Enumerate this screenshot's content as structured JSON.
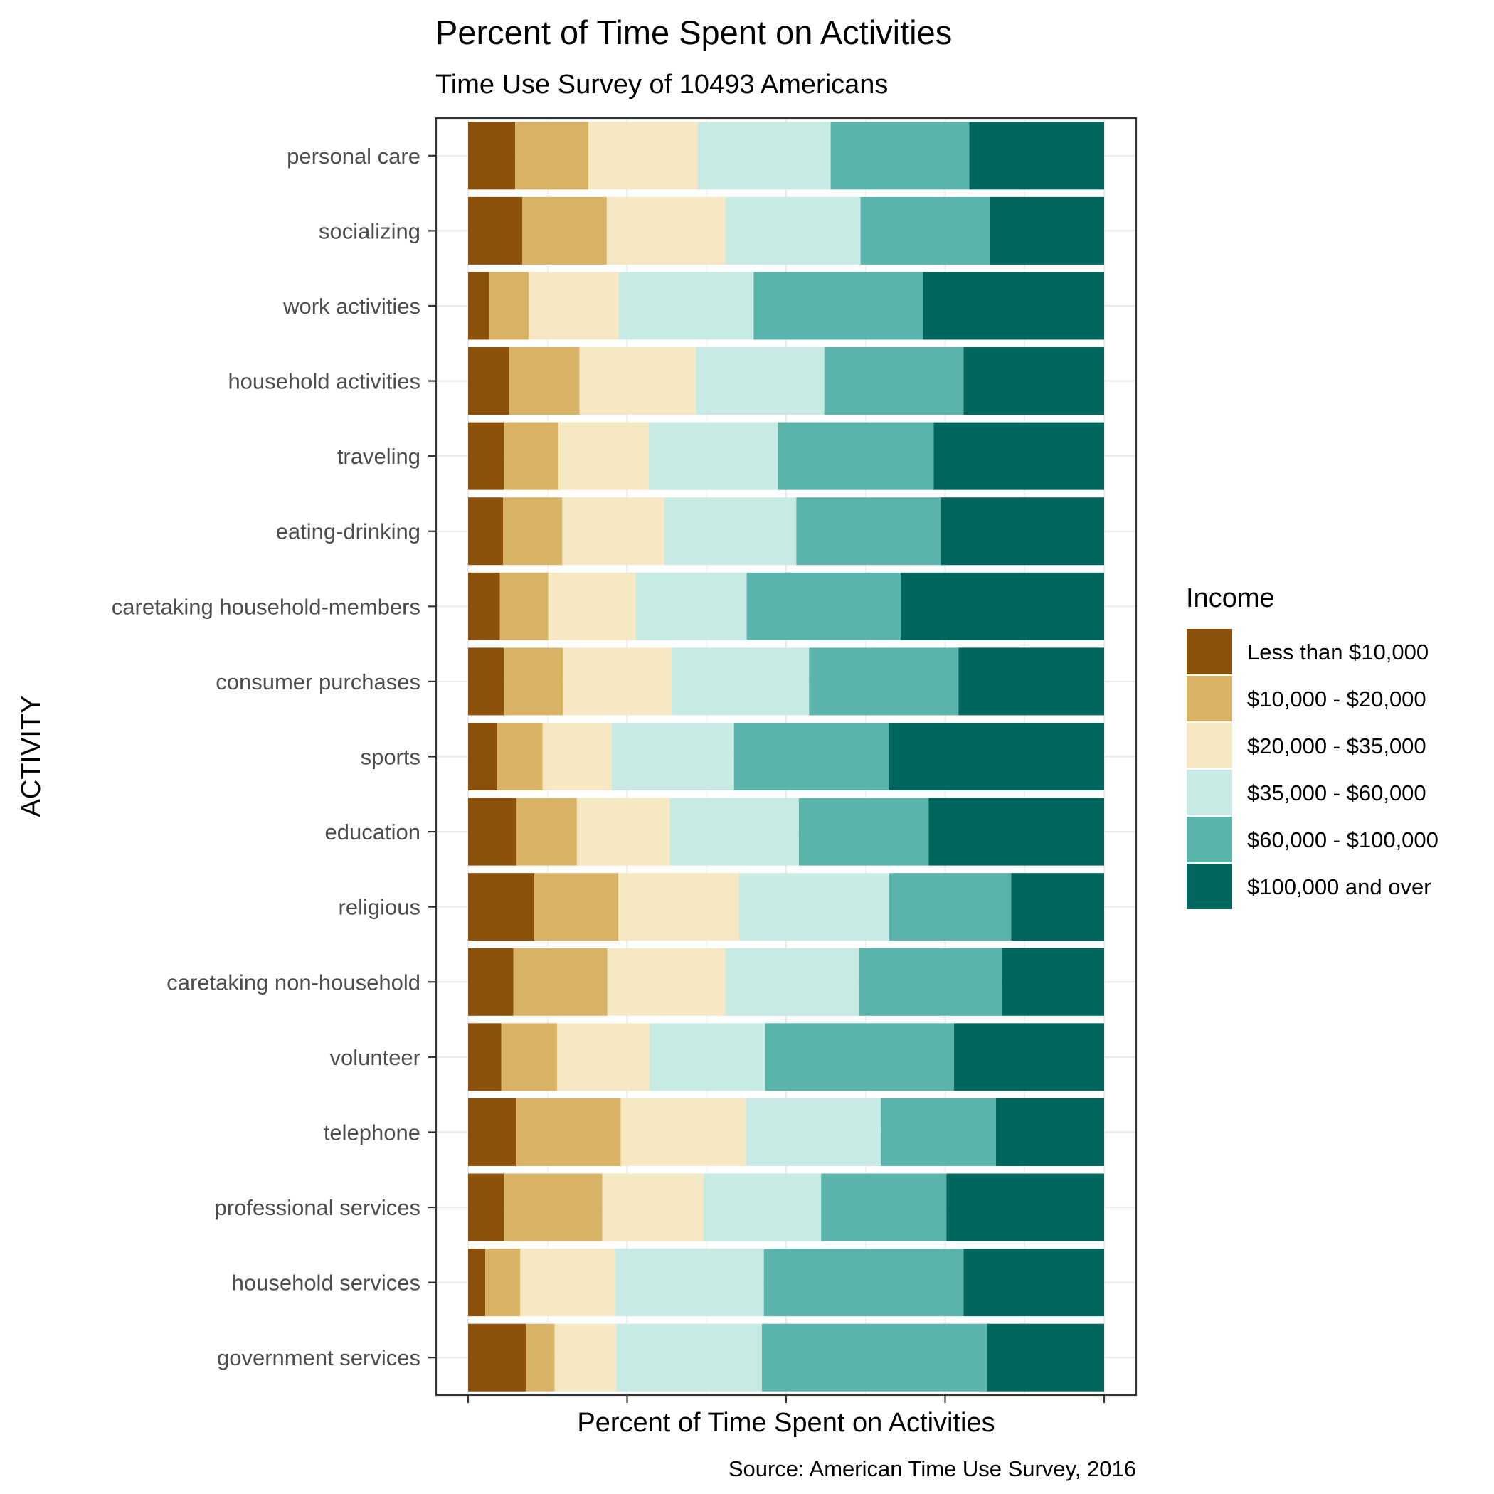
{
  "chart_data": {
    "type": "bar",
    "orientation": "horizontal",
    "stacked": true,
    "normalized": true,
    "title": "Percent of Time Spent on Activities",
    "subtitle": "Time Use Survey of 10493 Americans",
    "xlabel": "Percent of Time Spent on Activities",
    "ylabel": "ACTIVITY",
    "caption": "Source: American Time Use Survey, 2016",
    "xlim": [
      0,
      1
    ],
    "grid": true,
    "legend": {
      "title": "Income",
      "placement": "right"
    },
    "categories": [
      "personal care",
      "socializing",
      "work activities",
      "household activities",
      "traveling",
      "eating-drinking",
      "caretaking household-members",
      "consumer purchases",
      "sports",
      "education",
      "religious",
      "caretaking non-household",
      "volunteer",
      "telephone",
      "professional services",
      "household services",
      "government services"
    ],
    "series": [
      {
        "name": "Less than $10,000",
        "color": "#8c510a",
        "values": [
          0.074,
          0.085,
          0.033,
          0.065,
          0.056,
          0.055,
          0.05,
          0.056,
          0.046,
          0.076,
          0.104,
          0.071,
          0.052,
          0.075,
          0.056,
          0.027,
          0.091
        ]
      },
      {
        "name": "$10,000 - $20,000",
        "color": "#d8b365",
        "values": [
          0.115,
          0.133,
          0.062,
          0.11,
          0.086,
          0.093,
          0.076,
          0.093,
          0.071,
          0.095,
          0.132,
          0.148,
          0.088,
          0.165,
          0.155,
          0.055,
          0.045
        ]
      },
      {
        "name": "$20,000 - $35,000",
        "color": "#f6e8c3",
        "values": [
          0.172,
          0.186,
          0.142,
          0.183,
          0.142,
          0.16,
          0.138,
          0.171,
          0.109,
          0.146,
          0.19,
          0.185,
          0.145,
          0.197,
          0.159,
          0.149,
          0.097
        ]
      },
      {
        "name": "$35,000 - $60,000",
        "color": "#c7eae5",
        "values": [
          0.209,
          0.213,
          0.212,
          0.202,
          0.203,
          0.208,
          0.174,
          0.216,
          0.192,
          0.203,
          0.236,
          0.211,
          0.182,
          0.212,
          0.185,
          0.234,
          0.229
        ]
      },
      {
        "name": "$60,000 - $100,000",
        "color": "#5ab4ac",
        "values": [
          0.218,
          0.204,
          0.266,
          0.219,
          0.245,
          0.227,
          0.242,
          0.235,
          0.243,
          0.204,
          0.192,
          0.224,
          0.297,
          0.181,
          0.197,
          0.314,
          0.354
        ]
      },
      {
        "name": "$100,000 and over",
        "color": "#01665e",
        "values": [
          0.212,
          0.179,
          0.285,
          0.221,
          0.268,
          0.257,
          0.32,
          0.229,
          0.339,
          0.276,
          0.146,
          0.161,
          0.236,
          0.17,
          0.248,
          0.221,
          0.184
        ]
      }
    ]
  }
}
